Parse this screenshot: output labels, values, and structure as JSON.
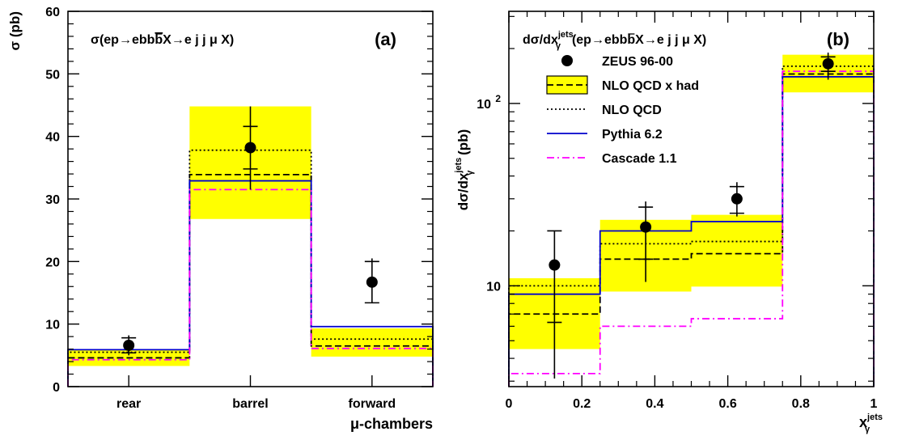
{
  "colors": {
    "band": "#ffff00",
    "data": "#000000",
    "nlo_had": "#000000",
    "nlo": "#000000",
    "pythia": "#0000cc",
    "cascade": "#ff00ff"
  },
  "chart_data": [
    {
      "type": "histogram",
      "panel_label": "(a)",
      "title": "σ(ep→ebb̄X→e j j μ X)",
      "title_parts": {
        "pre": "σ(ep→ebb",
        "bar": "b",
        "post": "X→e j j μ X)"
      },
      "ylabel": "σ  (pb)",
      "xlabel": "μ-chambers",
      "ylim": [
        0,
        60
      ],
      "y_scale": "linear",
      "yticks": [
        "0",
        "10",
        "20",
        "30",
        "40",
        "50",
        "60"
      ],
      "categories": [
        "rear",
        "barrel",
        "forward"
      ],
      "data_points": {
        "name": "ZEUS 96-00",
        "values": [
          6.6,
          38.2,
          16.7
        ],
        "stat_low": [
          5.4,
          34.8,
          13.4
        ],
        "stat_high": [
          7.8,
          41.6,
          20.0
        ],
        "tot_low": [
          5.0,
          31.5,
          13.4
        ],
        "tot_high": [
          8.2,
          44.8,
          20.5
        ]
      },
      "band": {
        "low": [
          3.3,
          26.8,
          4.8
        ],
        "high": [
          6.0,
          44.8,
          9.3
        ]
      },
      "series": [
        {
          "name": "NLO QCD x had",
          "style": "dashed",
          "values": [
            4.6,
            33.9,
            6.5
          ]
        },
        {
          "name": "NLO QCD",
          "style": "dotted",
          "values": [
            5.5,
            37.8,
            7.6
          ]
        },
        {
          "name": "Pythia 6.2",
          "style": "solid",
          "values": [
            5.9,
            32.9,
            9.6
          ]
        },
        {
          "name": "Cascade 1.1",
          "style": "dashdot",
          "values": [
            4.3,
            31.5,
            6.1
          ]
        }
      ]
    },
    {
      "type": "histogram",
      "panel_label": "(b)",
      "title": "dσ/dx_γ^jets(ep→ebb̄X→e j j μ X)",
      "title_parts": {
        "pre": "dσ/dx",
        "sup": "jets",
        "sub": "γ",
        "mid": "(ep→ebb",
        "bar": "b",
        "post": "X→e j j μ X)"
      },
      "ylabel": "dσ/dx_γ^jets  (pb)",
      "ylabel_parts": {
        "pre": "dσ/dx",
        "sup": "jets",
        "sub": "γ",
        "post": "  (pb)"
      },
      "xlabel": "x_γ^jets",
      "xlabel_parts": {
        "pre": "x",
        "sup": "jets",
        "sub": "γ"
      },
      "y_scale": "log",
      "ylim": [
        2.8,
        320
      ],
      "yticks": [
        {
          "value": 10,
          "label": "10"
        },
        {
          "value": 100,
          "label": "10",
          "exp": "2"
        }
      ],
      "xlim": [
        0,
        1
      ],
      "xticks": [
        "0",
        "0.2",
        "0.4",
        "0.6",
        "0.8",
        "1"
      ],
      "bin_edges": [
        0,
        0.25,
        0.5,
        0.75,
        1.0
      ],
      "data_points": {
        "name": "ZEUS 96-00",
        "x": [
          0.125,
          0.375,
          0.625,
          0.875
        ],
        "values": [
          13,
          21,
          30,
          165
        ],
        "stat_low": [
          6.3,
          14,
          25,
          150
        ],
        "stat_high": [
          20,
          27,
          35,
          180
        ],
        "tot_low": [
          3.1,
          10.5,
          24,
          135
        ],
        "tot_high": [
          20,
          29,
          37,
          190
        ]
      },
      "band": {
        "low": [
          4.5,
          9.3,
          9.9,
          115
        ],
        "high": [
          11,
          23,
          24.5,
          185
        ]
      },
      "series": [
        {
          "name": "NLO QCD x had",
          "style": "dashed",
          "values": [
            7,
            14,
            15,
            145
          ]
        },
        {
          "name": "NLO QCD",
          "style": "dotted",
          "values": [
            10,
            17,
            17.5,
            160
          ]
        },
        {
          "name": "Pythia 6.2",
          "style": "solid",
          "values": [
            9,
            20,
            22.5,
            140
          ]
        },
        {
          "name": "Cascade 1.1",
          "style": "dashdot",
          "values": [
            3.3,
            6,
            6.6,
            150
          ]
        }
      ],
      "legend": [
        {
          "label": "ZEUS 96-00",
          "kind": "marker"
        },
        {
          "label": "NLO QCD x had",
          "kind": "band-dashed"
        },
        {
          "label": "NLO QCD",
          "kind": "dotted"
        },
        {
          "label": "Pythia 6.2",
          "kind": "solid"
        },
        {
          "label": "Cascade 1.1",
          "kind": "dashdot"
        }
      ]
    }
  ]
}
